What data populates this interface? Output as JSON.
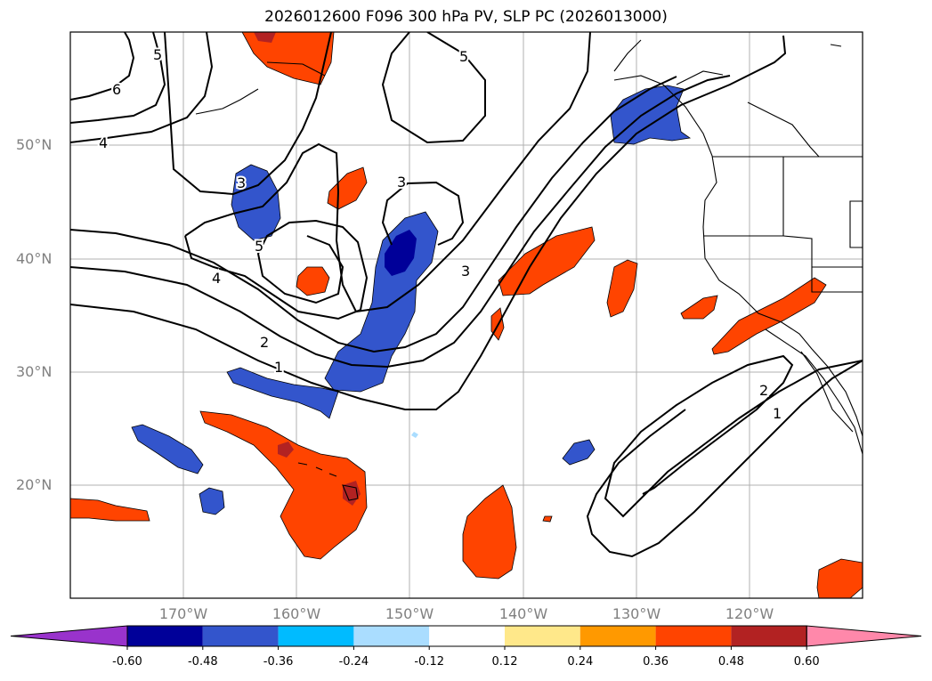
{
  "title": "2026012600 F096 300 hPa PV, SLP PC (2026013000)",
  "map": {
    "projection": "PlateCarree",
    "lon_range": [
      -180,
      -110
    ],
    "lat_range": [
      10,
      60
    ],
    "lat_ticks": [
      {
        "lat": 50,
        "label": "50°N"
      },
      {
        "lat": 40,
        "label": "40°N"
      },
      {
        "lat": 30,
        "label": "30°N"
      },
      {
        "lat": 20,
        "label": "20°N"
      }
    ],
    "lon_ticks": [
      {
        "lon": -170,
        "label": "170°W"
      },
      {
        "lon": -160,
        "label": "160°W"
      },
      {
        "lon": -150,
        "label": "150°W"
      },
      {
        "lon": -140,
        "label": "140°W"
      },
      {
        "lon": -130,
        "label": "130°W"
      },
      {
        "lon": -120,
        "label": "120°W"
      }
    ],
    "contour_labels": [
      "6",
      "5",
      "4",
      "5",
      "3",
      "3",
      "5",
      "4",
      "2",
      "1",
      "3",
      "2",
      "1"
    ]
  },
  "colorbar": {
    "levels": [
      "-0.60",
      "-0.48",
      "-0.36",
      "-0.24",
      "-0.12",
      "0.12",
      "0.24",
      "0.36",
      "0.48",
      "0.60"
    ],
    "colors": [
      "#9933cc",
      "#000099",
      "#3355cc",
      "#00bbff",
      "#aaddff",
      "#ffffff",
      "#ffe88a",
      "#ff9900",
      "#ff4400",
      "#b22222",
      "#ff88aa"
    ]
  }
}
